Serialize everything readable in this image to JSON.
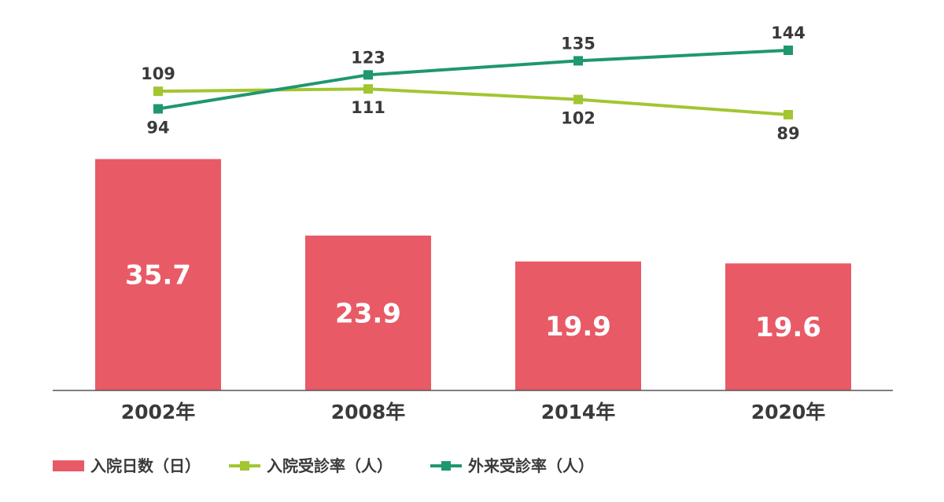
{
  "chart_data": {
    "type": "bar",
    "categories": [
      "2002年",
      "2008年",
      "2014年",
      "2020年"
    ],
    "series": [
      {
        "name": "入院日数（日）",
        "kind": "bar",
        "color": "#e85a66",
        "values": [
          35.7,
          23.9,
          19.9,
          19.6
        ]
      },
      {
        "name": "入院受診率（人）",
        "kind": "line",
        "color": "#a2c631",
        "values": [
          109,
          111,
          102,
          89
        ]
      },
      {
        "name": "外来受診率（人）",
        "kind": "line",
        "color": "#1f9770",
        "values": [
          94,
          123,
          135,
          144
        ]
      }
    ],
    "bar_ylim": [
      0,
      36
    ],
    "line_ylim": [
      40,
      160
    ],
    "legend_position": "bottom-left",
    "grid": false,
    "title": "",
    "xlabel": "",
    "ylabel": ""
  }
}
